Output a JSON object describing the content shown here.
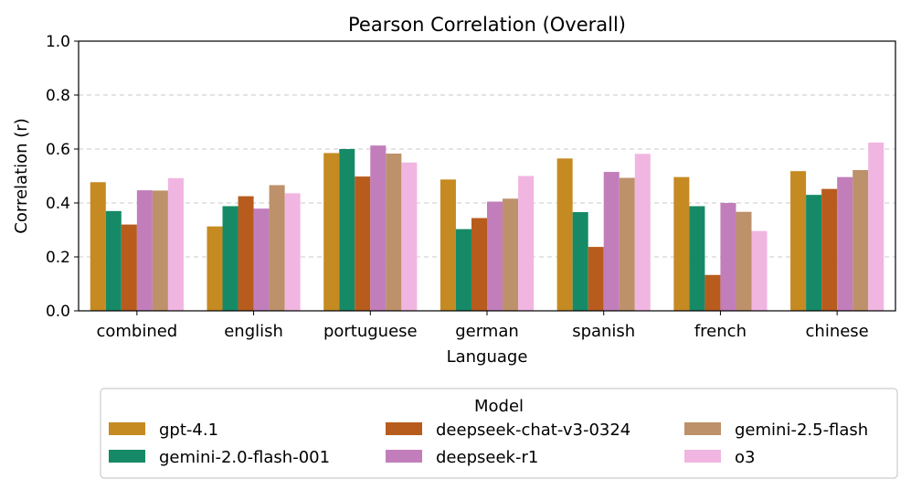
{
  "chart_data": {
    "type": "bar",
    "title": "Pearson Correlation (Overall)",
    "xlabel": "Language",
    "ylabel": "Correlation (r)",
    "ylim": [
      0,
      1.0
    ],
    "yticks": [
      "0.0",
      "0.2",
      "0.4",
      "0.6",
      "0.8",
      "1.0"
    ],
    "grid": "horizontal dashed",
    "categories": [
      "combined",
      "english",
      "portuguese",
      "german",
      "spanish",
      "french",
      "chinese"
    ],
    "legend": {
      "title": "Model",
      "placement": "bottom-center"
    },
    "series": [
      {
        "name": "gpt-4.1",
        "color": "#c68a22",
        "values": [
          0.477,
          0.313,
          0.585,
          0.487,
          0.565,
          0.496,
          0.518
        ]
      },
      {
        "name": "gemini-2.0-flash-001",
        "color": "#168a67",
        "values": [
          0.37,
          0.388,
          0.6,
          0.303,
          0.366,
          0.388,
          0.43
        ]
      },
      {
        "name": "deepseek-chat-v3-0324",
        "color": "#b85c1d",
        "values": [
          0.32,
          0.425,
          0.498,
          0.344,
          0.237,
          0.133,
          0.452
        ]
      },
      {
        "name": "deepseek-r1",
        "color": "#c17ebb",
        "values": [
          0.447,
          0.379,
          0.613,
          0.405,
          0.515,
          0.4,
          0.496
        ]
      },
      {
        "name": "gemini-2.5-flash",
        "color": "#bd916a",
        "values": [
          0.446,
          0.466,
          0.583,
          0.416,
          0.493,
          0.367,
          0.522
        ]
      },
      {
        "name": "o3",
        "color": "#f0b6e1",
        "values": [
          0.492,
          0.436,
          0.55,
          0.5,
          0.582,
          0.296,
          0.624
        ]
      }
    ]
  }
}
